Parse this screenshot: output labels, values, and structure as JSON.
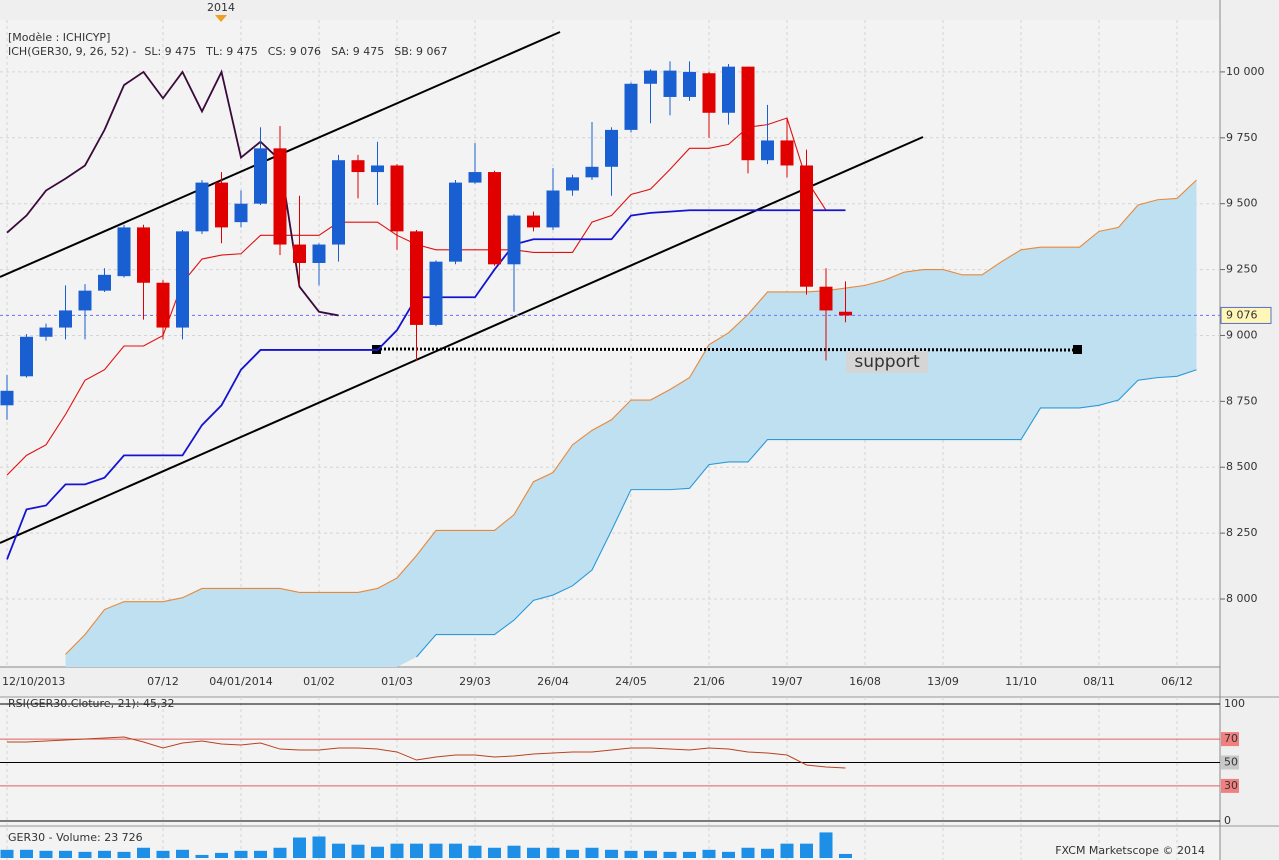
{
  "chart_data": [
    {
      "type": "candlestick",
      "model": "[Modèle : ICHICYP]",
      "indicator": "ICH(GER30, 9, 26, 52) -",
      "year_marker": "2014",
      "categories": [
        "12/10/2013",
        null,
        null,
        null,
        null,
        null,
        null,
        null,
        "07/12",
        null,
        null,
        null,
        "04/01/2014",
        null,
        null,
        null,
        "01/02",
        null,
        null,
        null,
        "01/03",
        null,
        null,
        null,
        "29/03",
        null,
        null,
        null,
        "26/04",
        null,
        null,
        null,
        "24/05",
        null,
        null,
        null,
        "21/06",
        null,
        null,
        null,
        "19/07",
        null,
        null,
        null,
        "16/08",
        null,
        null,
        null,
        "13/09",
        null,
        null,
        null,
        "11/10",
        null,
        null,
        null,
        "08/11",
        null,
        null,
        null,
        "06/12",
        null
      ],
      "ohlc": {
        "open": [
          8735,
          8845,
          8995,
          9030,
          9095,
          9170,
          9225,
          9410,
          9200,
          9030,
          9395,
          9580,
          9430,
          9500,
          9710,
          9345,
          9275,
          9345,
          9665,
          9620,
          9645,
          9395,
          9040,
          9280,
          9580,
          9620,
          9270,
          9455,
          9410,
          9550,
          9600,
          9640,
          9780,
          9955,
          9905,
          9905,
          9995,
          9845,
          10020,
          9665,
          9740,
          9645,
          9185,
          9090
        ],
        "high": [
          8850,
          9005,
          9045,
          9190,
          9195,
          9255,
          9420,
          9420,
          9210,
          9400,
          9590,
          9620,
          9550,
          9790,
          9795,
          9530,
          9350,
          9685,
          9685,
          9735,
          9650,
          9400,
          9285,
          9590,
          9730,
          9625,
          9460,
          9470,
          9635,
          9610,
          9810,
          9790,
          9960,
          10010,
          10040,
          10040,
          10000,
          10030,
          10020,
          9875,
          9825,
          9705,
          9255,
          9205
        ],
        "low": [
          8680,
          8840,
          8980,
          8985,
          8985,
          9165,
          9220,
          9060,
          8985,
          8985,
          9385,
          9350,
          9410,
          9495,
          9305,
          9190,
          9190,
          9280,
          9520,
          9495,
          9325,
          8905,
          9035,
          9270,
          9575,
          9265,
          9090,
          9395,
          9400,
          9530,
          9590,
          9530,
          9770,
          9805,
          9835,
          9890,
          9750,
          9800,
          9615,
          9650,
          9600,
          9155,
          8905,
          9050
        ],
        "close": [
          8790,
          8995,
          9030,
          9095,
          9170,
          9230,
          9410,
          9200,
          9030,
          9395,
          9580,
          9410,
          9500,
          9710,
          9345,
          9275,
          9345,
          9665,
          9620,
          9645,
          9395,
          9040,
          9280,
          9580,
          9620,
          9270,
          9455,
          9410,
          9550,
          9600,
          9640,
          9780,
          9955,
          10005,
          10005,
          10000,
          9845,
          10020,
          9665,
          9740,
          9645,
          9185,
          9095,
          9076
        ]
      },
      "up_color": "#1a5fd2",
      "down_color": "#e00000",
      "series": [
        {
          "name": "SL: 9 475",
          "color": "#e01010",
          "values": [
            8470,
            8545,
            8585,
            8700,
            8830,
            8870,
            8960,
            8960,
            9000,
            9200,
            9290,
            9305,
            9310,
            9380,
            9380,
            9380,
            9380,
            9430,
            9430,
            9430,
            9380,
            9345,
            9325,
            9325,
            9325,
            9325,
            9325,
            9315,
            9315,
            9315,
            9430,
            9455,
            9535,
            9555,
            9630,
            9710,
            9710,
            9725,
            9790,
            9800,
            9825,
            9590,
            9475,
            null,
            null,
            null,
            null,
            null,
            null,
            null,
            null,
            null,
            null,
            null,
            null,
            null,
            null,
            null,
            null,
            null,
            null,
            null
          ]
        },
        {
          "name": "TL: 9 475",
          "color": "#1414d0",
          "values": [
            8150,
            8340,
            8355,
            8435,
            8435,
            8460,
            8545,
            8545,
            8545,
            8545,
            8660,
            8735,
            8870,
            8945,
            8945,
            8945,
            8945,
            8945,
            8945,
            8945,
            9020,
            9145,
            9145,
            9145,
            9145,
            9250,
            9345,
            9365,
            9365,
            9365,
            9365,
            9365,
            9455,
            9465,
            9470,
            9475,
            9475,
            9475,
            9475,
            9475,
            9475,
            9475,
            9475,
            9475,
            null,
            null,
            null,
            null,
            null,
            null,
            null,
            null,
            null,
            null,
            null,
            null,
            null,
            null,
            null,
            null,
            null,
            null
          ]
        },
        {
          "name": "CS: 9 076",
          "color": "#3a0a3a",
          "values": [
            9390,
            9455,
            9550,
            9595,
            9645,
            9780,
            9950,
            10000,
            9900,
            10000,
            9850,
            10000,
            9675,
            9735,
            9665,
            9185,
            9090,
            9076,
            null,
            null,
            null,
            null,
            null,
            null,
            null,
            null,
            null,
            null,
            null,
            null,
            null,
            null,
            null,
            null,
            null,
            null,
            null,
            null,
            null,
            null,
            null,
            null,
            null,
            null,
            null,
            null,
            null,
            null,
            null,
            null,
            null,
            null,
            null,
            null,
            null,
            null,
            null,
            null,
            null,
            null,
            null,
            null
          ]
        },
        {
          "name": "SA: 9 475",
          "color": "#e8893a",
          "values": [
            null,
            null,
            null,
            7790,
            7865,
            7960,
            7990,
            7990,
            7990,
            8005,
            8040,
            8040,
            8040,
            8040,
            8040,
            8025,
            8025,
            8025,
            8025,
            8040,
            8080,
            8165,
            8260,
            8260,
            8260,
            8260,
            8320,
            8445,
            8480,
            8585,
            8640,
            8680,
            8755,
            8755,
            8795,
            8840,
            8965,
            9010,
            9080,
            9165,
            9165,
            9165,
            9170,
            9180,
            9190,
            9210,
            9240,
            9250,
            9250,
            9230,
            9230,
            9280,
            9325,
            9335,
            9335,
            9335,
            9395,
            9410,
            9495,
            9515,
            9520,
            9590
          ]
        },
        {
          "name": "SB: 9 067",
          "color": "#2a9ad8",
          "values": [
            null,
            null,
            null,
            null,
            null,
            null,
            null,
            null,
            null,
            null,
            null,
            null,
            null,
            null,
            null,
            null,
            null,
            null,
            null,
            null,
            null,
            7780,
            7865,
            7865,
            7865,
            7865,
            7920,
            7995,
            8015,
            8050,
            8110,
            8260,
            8415,
            8415,
            8415,
            8420,
            8510,
            8520,
            8520,
            8605,
            8605,
            8605,
            8605,
            8605,
            8605,
            8605,
            8605,
            8605,
            8605,
            8605,
            8605,
            8605,
            8605,
            8725,
            8725,
            8725,
            8735,
            8755,
            8830,
            8840,
            8845,
            8870
          ]
        }
      ],
      "cloud_color": "#bfe0f0",
      "ylim": [
        7742,
        10197
      ],
      "yticks": [
        {
          "value": 10000,
          "label": "10 000"
        },
        {
          "value": 9750,
          "label": "9 750"
        },
        {
          "value": 9500,
          "label": "9 500"
        },
        {
          "value": 9250,
          "label": "9 250"
        },
        {
          "value": 9000,
          "label": "9 000"
        },
        {
          "value": 8750,
          "label": "8 750"
        },
        {
          "value": 8500,
          "label": "8 500"
        },
        {
          "value": 8250,
          "label": "8 250"
        },
        {
          "value": 8000,
          "label": "8 000"
        }
      ],
      "grid": true,
      "current_price": {
        "value": 9076,
        "label": "9 076"
      },
      "annotation": "support"
    },
    {
      "type": "line",
      "title": "RSI(GER30.Cloture, 21): 45,32",
      "color": "#b8421e",
      "values": [
        67.5,
        67.5,
        68.4,
        69.2,
        70.1,
        70.9,
        71.8,
        67.5,
        62.4,
        66.7,
        68.4,
        65.8,
        65.0,
        66.7,
        61.5,
        60.7,
        60.7,
        62.4,
        62.4,
        61.5,
        59.0,
        52.1,
        54.7,
        56.4,
        56.4,
        54.7,
        55.6,
        57.3,
        58.1,
        59.0,
        59.0,
        60.7,
        62.4,
        62.4,
        61.5,
        60.7,
        62.4,
        61.5,
        59.0,
        58.1,
        56.4,
        47.9,
        46.2,
        45.32
      ],
      "ylim": [
        0,
        100
      ],
      "yticks": [
        100,
        70,
        50,
        30,
        0
      ]
    },
    {
      "type": "bar",
      "title": "GER30 - Volume: 23 726",
      "color": "#1e8fe6",
      "values": [
        48000,
        48000,
        42000,
        42000,
        36000,
        42000,
        36000,
        60000,
        42000,
        48000,
        18000,
        30000,
        42000,
        42000,
        60000,
        120000,
        126000,
        84000,
        78000,
        66000,
        84000,
        84000,
        84000,
        84000,
        72000,
        60000,
        72000,
        60000,
        60000,
        48000,
        60000,
        48000,
        42000,
        42000,
        36000,
        36000,
        48000,
        36000,
        60000,
        54000,
        84000,
        84000,
        150000,
        23726
      ],
      "ylim": [
        0,
        170000
      ],
      "credit": "FXCM Marketscope © 2014"
    }
  ]
}
